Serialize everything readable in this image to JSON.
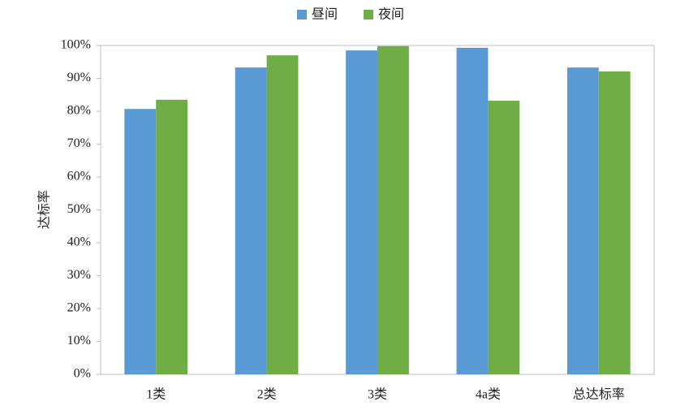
{
  "chart_data": {
    "type": "bar",
    "y_label": "达标率",
    "categories": [
      "1类",
      "2类",
      "3类",
      "4a类",
      "总达标率"
    ],
    "series": [
      {
        "name": "昼间",
        "color": "#5b9bd5",
        "values": [
          80.7,
          93.3,
          98.5,
          99.3,
          93.3
        ]
      },
      {
        "name": "夜间",
        "color": "#70ad47",
        "values": [
          83.5,
          97.0,
          99.8,
          83.2,
          92.1
        ]
      }
    ],
    "ylim": [
      0,
      100
    ],
    "yticks": [
      {
        "value": 0,
        "label": "0%"
      },
      {
        "value": 10,
        "label": "10%"
      },
      {
        "value": 20,
        "label": "20%"
      },
      {
        "value": 30,
        "label": "30%"
      },
      {
        "value": 40,
        "label": "40%"
      },
      {
        "value": 50,
        "label": "50%"
      },
      {
        "value": 60,
        "label": "60%"
      },
      {
        "value": 70,
        "label": "70%"
      },
      {
        "value": 80,
        "label": "80%"
      },
      {
        "value": 90,
        "label": "90%"
      },
      {
        "value": 100,
        "label": "100%"
      }
    ],
    "grid": false,
    "legend": "top"
  }
}
